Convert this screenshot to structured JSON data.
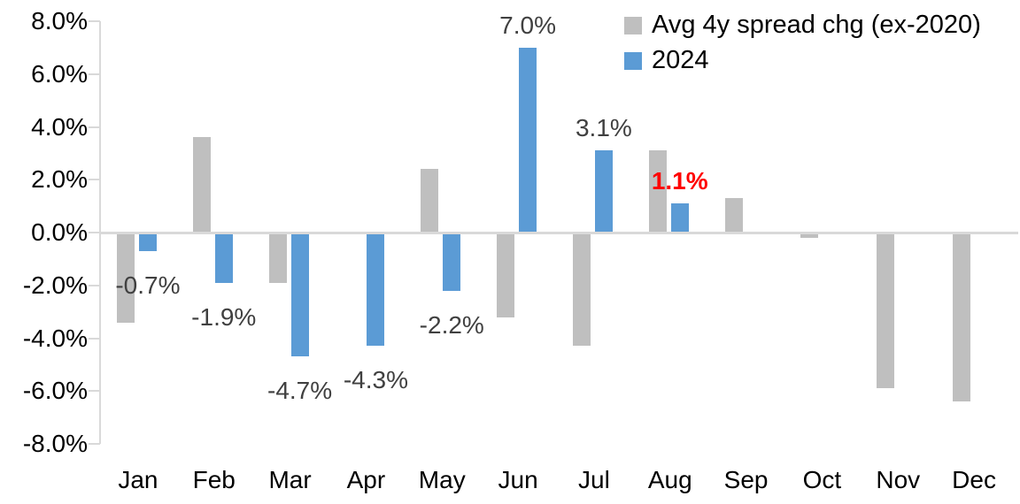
{
  "chart_data": {
    "type": "bar",
    "title": "",
    "xlabel": "",
    "ylabel": "",
    "categories": [
      "Jan",
      "Feb",
      "Mar",
      "Apr",
      "May",
      "Jun",
      "Jul",
      "Aug",
      "Sep",
      "Oct",
      "Nov",
      "Dec"
    ],
    "series": [
      {
        "name": "Avg 4y spread chg (ex-2020)",
        "color": "#BFBFBF",
        "values": [
          -3.4,
          3.6,
          -1.9,
          0.0,
          2.4,
          -3.2,
          -4.3,
          3.1,
          1.3,
          -0.2,
          -5.9,
          -6.4
        ]
      },
      {
        "name": "2024",
        "color": "#5B9BD5",
        "values": [
          -0.7,
          -1.9,
          -4.7,
          -4.3,
          -2.2,
          7.0,
          3.1,
          1.1,
          null,
          null,
          null,
          null
        ]
      }
    ],
    "data_labels": [
      {
        "text": "-0.7%",
        "month_index": 0,
        "value": -0.7,
        "color": "#404040",
        "bold": false
      },
      {
        "text": "-1.9%",
        "month_index": 1,
        "value": -1.9,
        "color": "#404040",
        "bold": false
      },
      {
        "text": "-4.7%",
        "month_index": 2,
        "value": -4.7,
        "color": "#404040",
        "bold": false
      },
      {
        "text": "-4.3%",
        "month_index": 3,
        "value": -4.3,
        "color": "#404040",
        "bold": false
      },
      {
        "text": "-2.2%",
        "month_index": 4,
        "value": -2.2,
        "color": "#404040",
        "bold": false
      },
      {
        "text": "7.0%",
        "month_index": 5,
        "value": 7.0,
        "color": "#404040",
        "bold": false
      },
      {
        "text": "3.1%",
        "month_index": 6,
        "value": 3.1,
        "color": "#404040",
        "bold": false
      },
      {
        "text": "1.1%",
        "month_index": 7,
        "value": 1.1,
        "color": "#FF0000",
        "bold": true
      }
    ],
    "y_axis": {
      "tick_labels": [
        "8.0%",
        "6.0%",
        "4.0%",
        "2.0%",
        "0.0%",
        "-2.0%",
        "-4.0%",
        "-6.0%",
        "-8.0%"
      ],
      "tick_values": [
        8,
        6,
        4,
        2,
        0,
        -2,
        -4,
        -6,
        -8
      ],
      "min": -8,
      "max": 8
    },
    "ylim": [
      -8,
      8
    ],
    "grid": false,
    "legend_position": "top-right",
    "legend": [
      {
        "label": "Avg 4y spread chg (ex-2020)",
        "color": "#BFBFBF"
      },
      {
        "label": "2024",
        "color": "#5B9BD5"
      }
    ]
  },
  "colors": {
    "background": "#FFFFFF",
    "axis_line": "#D9D9D9",
    "zero_line": "#D9D9D9",
    "axis_text": "#000000",
    "data_label_text": "#404040",
    "highlight_label_text": "#FF0000",
    "series_gray": "#BFBFBF",
    "series_blue": "#5B9BD5"
  }
}
